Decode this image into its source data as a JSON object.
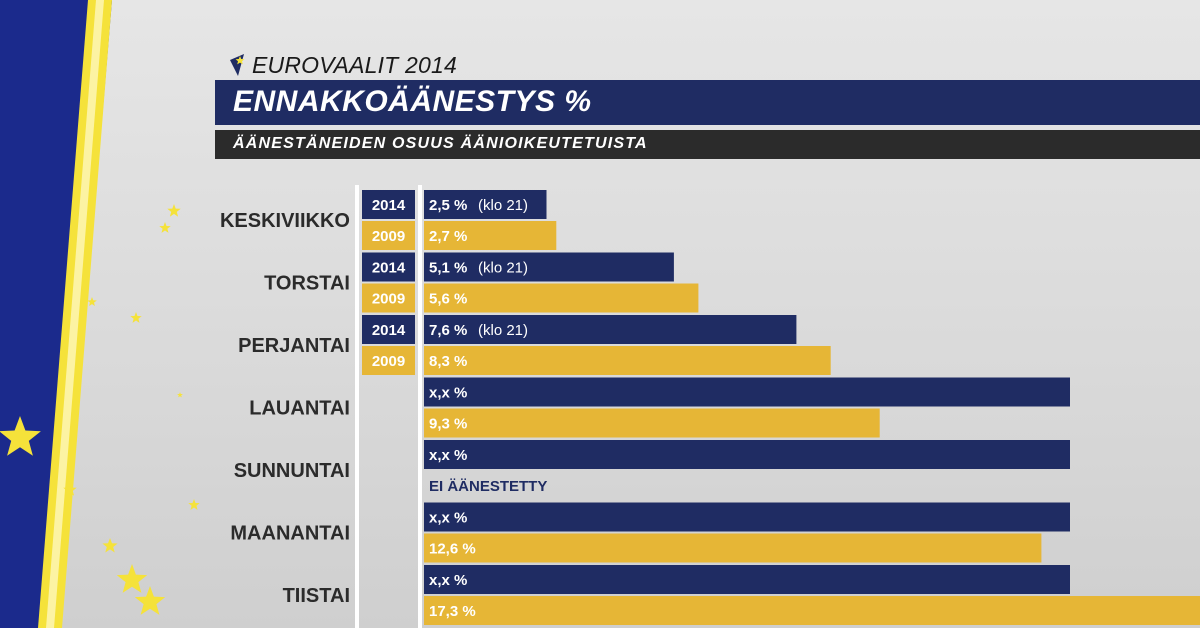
{
  "header": {
    "brand": "EUROVAALIT 2014",
    "title": "ENNAKKOÄÄNESTYS %",
    "subtitle": "ÄÄNESTÄNEIDEN OSUUS ÄÄNIOIKEUTETUISTA"
  },
  "colors": {
    "navy": "#1f2c63",
    "gold": "#e6b636",
    "dark_bar": "#2b2b2b",
    "panel_blue": "#1b2a8c",
    "panel_yellow": "#f5e23a"
  },
  "icons": [
    "star-icon",
    "eu-star-logo-icon"
  ],
  "chart_data": {
    "type": "bar",
    "orientation": "horizontal",
    "title": "ENNAKKOÄÄNESTYS %",
    "subtitle": "ÄÄNESTÄNEIDEN OSUUS ÄÄNIOIKEUTETUISTA",
    "categories": [
      "KESKIVIIKKO",
      "TORSTAI",
      "PERJANTAI",
      "LAUANTAI",
      "SUNNUNTAI",
      "MAANANTAI",
      "TIISTAI"
    ],
    "year_tags": [
      "2014",
      "2009"
    ],
    "series": [
      {
        "name": "2014",
        "color": "#1f2c63",
        "values": [
          2.5,
          5.1,
          7.6,
          null,
          null,
          null,
          null
        ],
        "labels": [
          "2,5 %",
          "5,1 %",
          "7,6 %",
          "x,x %",
          "x,x %",
          "x,x %",
          "x,x %"
        ],
        "notes": [
          "(klo 21)",
          "(klo 21)",
          "(klo 21)",
          "",
          "",
          "",
          ""
        ]
      },
      {
        "name": "2009",
        "color": "#e6b636",
        "values": [
          2.7,
          5.6,
          8.3,
          9.3,
          null,
          12.6,
          17.3
        ],
        "labels": [
          "2,7 %",
          "5,6 %",
          "8,3 %",
          "9,3 %",
          "EI ÄÄNESTETTY",
          "12,6 %",
          "17,3 %"
        ]
      }
    ],
    "xlim": [
      0,
      20
    ],
    "grid": false,
    "legend": "none"
  }
}
